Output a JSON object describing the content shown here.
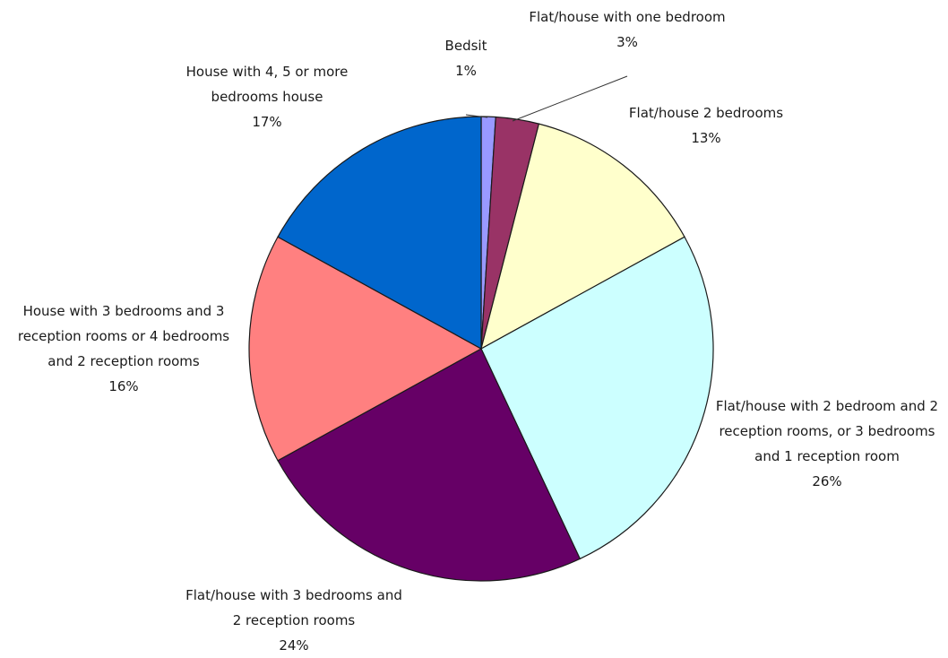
{
  "chart_data": {
    "type": "pie",
    "title": "",
    "slices": [
      {
        "label": "Bedsit",
        "value": 1,
        "value_label": "1%",
        "color": "#9999ff"
      },
      {
        "label": "Flat/house with one bedroom",
        "value": 3,
        "value_label": "3%",
        "color": "#993366"
      },
      {
        "label": "Flat/house 2 bedrooms",
        "value": 13,
        "value_label": "13%",
        "color": "#ffffcc"
      },
      {
        "label": "Flat/house with 2 bedroom and 2 reception rooms, or 3 bedrooms and 1 reception room",
        "value": 26,
        "value_label": "26%",
        "color": "#ccffff"
      },
      {
        "label": "Flat/house with 3 bedrooms and 2 reception rooms",
        "value": 24,
        "value_label": "24%",
        "color": "#660066"
      },
      {
        "label": "House with 3 bedrooms and 3 reception rooms or 4 bedrooms and 2 reception rooms",
        "value": 16,
        "value_label": "16%",
        "color": "#ff8080"
      },
      {
        "label": "House with 4, 5 or more bedrooms house",
        "value": 17,
        "value_label": "17%",
        "color": "#0066cc"
      }
    ]
  }
}
